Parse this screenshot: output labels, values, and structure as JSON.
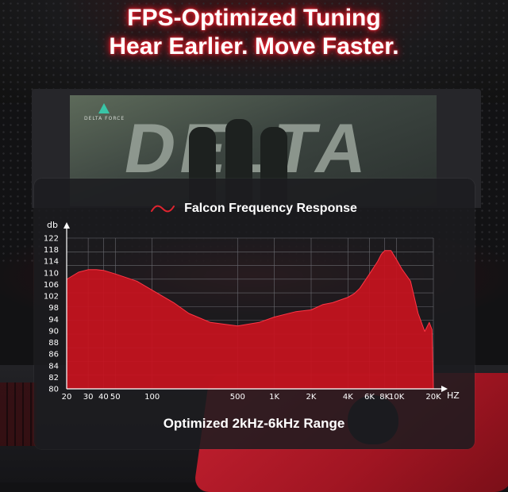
{
  "headline": {
    "line1": "FPS-Optimized Tuning",
    "line2": "Hear Earlier. Move Faster."
  },
  "background": {
    "brand_text": "DELTA FORCE",
    "art_text": "DELTA"
  },
  "colors": {
    "accent": "#e0242f",
    "fill": "#c8121e",
    "panel": "#1c1c20"
  },
  "chart_data": {
    "type": "area",
    "title": "Falcon Frequency Response",
    "subtitle": "Optimized 2kHz-6kHz Range",
    "xlabel": "HZ",
    "ylabel": "db",
    "ylim": [
      80,
      122
    ],
    "x_scale": "log",
    "x_ticks": [
      {
        "label": "20",
        "hz": 20
      },
      {
        "label": "30",
        "hz": 30
      },
      {
        "label": "40",
        "hz": 40
      },
      {
        "label": "50",
        "hz": 50
      },
      {
        "label": "100",
        "hz": 100
      },
      {
        "label": "500",
        "hz": 500
      },
      {
        "label": "1K",
        "hz": 1000
      },
      {
        "label": "2K",
        "hz": 2000
      },
      {
        "label": "4K",
        "hz": 4000
      },
      {
        "label": "6K",
        "hz": 6000
      },
      {
        "label": "8K",
        "hz": 8000
      },
      {
        "label": "10K",
        "hz": 10000
      },
      {
        "label": "20K",
        "hz": 20000
      }
    ],
    "y_ticks": [
      80,
      82,
      84,
      86,
      88,
      90,
      94,
      98,
      102,
      106,
      110,
      114,
      118,
      122
    ],
    "grid": true,
    "legend": "none",
    "x": [
      20,
      25,
      30,
      35,
      40,
      50,
      75,
      100,
      150,
      200,
      300,
      500,
      750,
      1000,
      1500,
      2000,
      2500,
      3000,
      4000,
      4500,
      5000,
      6000,
      7000,
      7500,
      8000,
      9000,
      10000,
      11000,
      13000,
      15000,
      17000,
      18500,
      19500,
      20000
    ],
    "y": [
      110.5,
      112.5,
      113.2,
      113.2,
      113.0,
      112.0,
      110.0,
      107.5,
      104.0,
      101.0,
      98.5,
      97.5,
      98.5,
      100.0,
      101.5,
      102.0,
      103.5,
      104.0,
      105.5,
      106.5,
      108.0,
      112.0,
      115.5,
      117.5,
      118.5,
      118.5,
      116.0,
      113.5,
      110.0,
      101.0,
      96.0,
      98.5,
      96.5,
      80.0
    ]
  }
}
